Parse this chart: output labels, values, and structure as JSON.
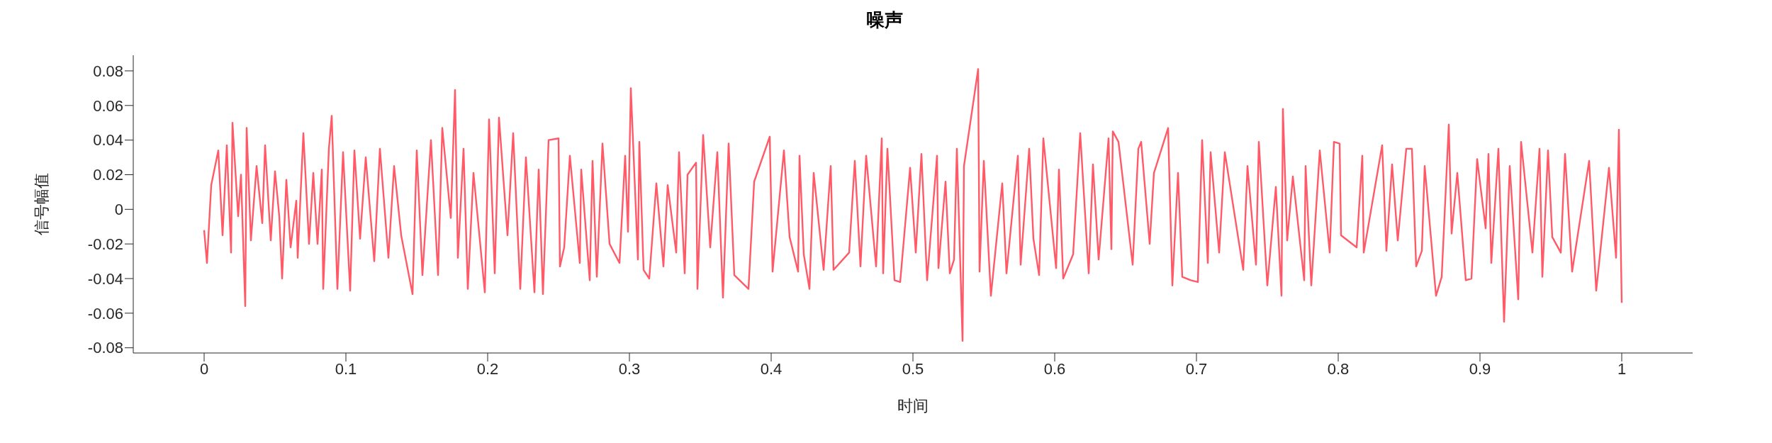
{
  "chart_data": {
    "type": "line",
    "title": "噪声",
    "xlabel": "时间",
    "ylabel": "信号幅值",
    "xlim": [
      -0.05,
      1.05
    ],
    "xticks": [
      0,
      0.1,
      0.2,
      0.3,
      0.4,
      0.5,
      0.6,
      0.7,
      0.8,
      0.9,
      1
    ],
    "ylim": [
      -0.083,
      0.089
    ],
    "yticks": [
      -0.08,
      -0.06,
      -0.04,
      -0.02,
      0,
      0.02,
      0.04,
      0.06,
      0.08
    ],
    "grid": false,
    "legend": false,
    "marker": "none",
    "line_style": "solid",
    "series": [
      {
        "color": "#ff5a68",
        "x": [
          0,
          0.002,
          0.005,
          0.01,
          0.013,
          0.016,
          0.019,
          0.02,
          0.024,
          0.026,
          0.029,
          0.03,
          0.033,
          0.037,
          0.041,
          0.043,
          0.047,
          0.05,
          0.053,
          0.055,
          0.058,
          0.061,
          0.065,
          0.066,
          0.07,
          0.074,
          0.077,
          0.08,
          0.083,
          0.084,
          0.088,
          0.09,
          0.094,
          0.098,
          0.103,
          0.106,
          0.11,
          0.114,
          0.12,
          0.124,
          0.13,
          0.134,
          0.139,
          0.147,
          0.15,
          0.154,
          0.16,
          0.165,
          0.168,
          0.174,
          0.177,
          0.179,
          0.183,
          0.186,
          0.19,
          0.198,
          0.201,
          0.205,
          0.208,
          0.214,
          0.218,
          0.223,
          0.227,
          0.233,
          0.236,
          0.239,
          0.243,
          0.25,
          0.251,
          0.254,
          0.258,
          0.265,
          0.266,
          0.272,
          0.274,
          0.277,
          0.281,
          0.286,
          0.293,
          0.297,
          0.299,
          0.301,
          0.306,
          0.307,
          0.31,
          0.314,
          0.319,
          0.324,
          0.327,
          0.333,
          0.335,
          0.339,
          0.341,
          0.347,
          0.348,
          0.352,
          0.357,
          0.362,
          0.366,
          0.37,
          0.374,
          0.384,
          0.388,
          0.399,
          0.401,
          0.409,
          0.413,
          0.419,
          0.42,
          0.423,
          0.427,
          0.43,
          0.437,
          0.442,
          0.444,
          0.455,
          0.459,
          0.463,
          0.467,
          0.474,
          0.478,
          0.479,
          0.482,
          0.487,
          0.491,
          0.498,
          0.502,
          0.506,
          0.51,
          0.517,
          0.518,
          0.523,
          0.526,
          0.529,
          0.531,
          0.535,
          0.536,
          0.546,
          0.547,
          0.55,
          0.555,
          0.563,
          0.566,
          0.574,
          0.576,
          0.582,
          0.585,
          0.589,
          0.592,
          0.601,
          0.603,
          0.606,
          0.613,
          0.618,
          0.624,
          0.627,
          0.631,
          0.638,
          0.64,
          0.641,
          0.645,
          0.655,
          0.659,
          0.661,
          0.667,
          0.67,
          0.68,
          0.683,
          0.687,
          0.69,
          0.696,
          0.701,
          0.704,
          0.708,
          0.71,
          0.716,
          0.72,
          0.733,
          0.736,
          0.742,
          0.744,
          0.75,
          0.756,
          0.76,
          0.761,
          0.764,
          0.768,
          0.776,
          0.777,
          0.781,
          0.787,
          0.794,
          0.797,
          0.801,
          0.802,
          0.813,
          0.817,
          0.818,
          0.831,
          0.834,
          0.838,
          0.842,
          0.848,
          0.852,
          0.855,
          0.859,
          0.861,
          0.869,
          0.873,
          0.878,
          0.88,
          0.884,
          0.89,
          0.894,
          0.898,
          0.904,
          0.906,
          0.908,
          0.913,
          0.917,
          0.921,
          0.927,
          0.929,
          0.937,
          0.942,
          0.944,
          0.948,
          0.951,
          0.957,
          0.96,
          0.965,
          0.977,
          0.982,
          0.991,
          0.996,
          0.998,
          1
        ],
        "values": [
          -0.012,
          -0.031,
          0.014,
          0.034,
          -0.015,
          0.037,
          -0.025,
          0.05,
          -0.004,
          0.02,
          -0.056,
          0.047,
          -0.018,
          0.025,
          -0.008,
          0.037,
          -0.018,
          0.022,
          -0.004,
          -0.04,
          0.017,
          -0.022,
          0.005,
          -0.028,
          0.044,
          -0.02,
          0.021,
          -0.02,
          0.023,
          -0.046,
          0.035,
          0.054,
          -0.046,
          0.033,
          -0.047,
          0.034,
          -0.017,
          0.03,
          -0.03,
          0.035,
          -0.028,
          0.025,
          -0.015,
          -0.049,
          0.034,
          -0.038,
          0.04,
          -0.038,
          0.047,
          -0.005,
          0.069,
          -0.028,
          0.035,
          -0.046,
          0.021,
          -0.048,
          0.052,
          -0.037,
          0.053,
          -0.015,
          0.044,
          -0.046,
          0.03,
          -0.048,
          0.023,
          -0.049,
          0.04,
          0.041,
          -0.033,
          -0.022,
          0.031,
          -0.031,
          0.023,
          -0.041,
          0.028,
          -0.039,
          0.038,
          -0.02,
          -0.031,
          0.031,
          -0.013,
          0.07,
          -0.029,
          0.039,
          -0.035,
          -0.04,
          0.015,
          -0.033,
          0.014,
          -0.025,
          0.033,
          -0.037,
          0.02,
          0.027,
          -0.046,
          0.043,
          -0.022,
          0.033,
          -0.051,
          0.038,
          -0.038,
          -0.046,
          0.016,
          0.042,
          -0.036,
          0.034,
          -0.016,
          -0.036,
          0.031,
          -0.026,
          -0.046,
          0.021,
          -0.035,
          0.025,
          -0.035,
          -0.025,
          0.028,
          -0.033,
          0.031,
          -0.033,
          0.041,
          -0.037,
          0.035,
          -0.041,
          -0.042,
          0.024,
          -0.025,
          0.032,
          -0.041,
          0.031,
          -0.034,
          0.016,
          -0.037,
          -0.029,
          0.035,
          -0.076,
          0.025,
          0.081,
          -0.036,
          0.028,
          -0.05,
          0.015,
          -0.037,
          0.031,
          -0.032,
          0.035,
          -0.017,
          -0.038,
          0.041,
          -0.034,
          0.023,
          -0.04,
          -0.026,
          0.044,
          -0.037,
          0.026,
          -0.029,
          0.041,
          -0.023,
          0.045,
          0.039,
          -0.032,
          0.035,
          0.039,
          -0.02,
          0.021,
          0.047,
          -0.044,
          0.021,
          -0.039,
          -0.041,
          -0.042,
          0.04,
          -0.031,
          0.033,
          -0.025,
          0.033,
          -0.035,
          0.025,
          -0.032,
          0.039,
          -0.044,
          0.013,
          -0.05,
          0.058,
          -0.018,
          0.019,
          -0.041,
          0.025,
          -0.044,
          0.034,
          -0.025,
          0.039,
          0.038,
          -0.015,
          -0.022,
          0.031,
          -0.025,
          0.037,
          -0.024,
          0.026,
          -0.018,
          0.035,
          0.035,
          -0.033,
          -0.024,
          0.025,
          -0.05,
          -0.039,
          0.049,
          -0.014,
          0.021,
          -0.041,
          -0.04,
          0.029,
          -0.011,
          0.032,
          -0.031,
          0.035,
          -0.065,
          0.025,
          -0.052,
          0.039,
          -0.025,
          0.035,
          -0.039,
          0.034,
          -0.016,
          -0.025,
          0.032,
          -0.036,
          0.028,
          -0.047,
          0.024,
          -0.028,
          0.046,
          -0.054
        ]
      }
    ]
  }
}
